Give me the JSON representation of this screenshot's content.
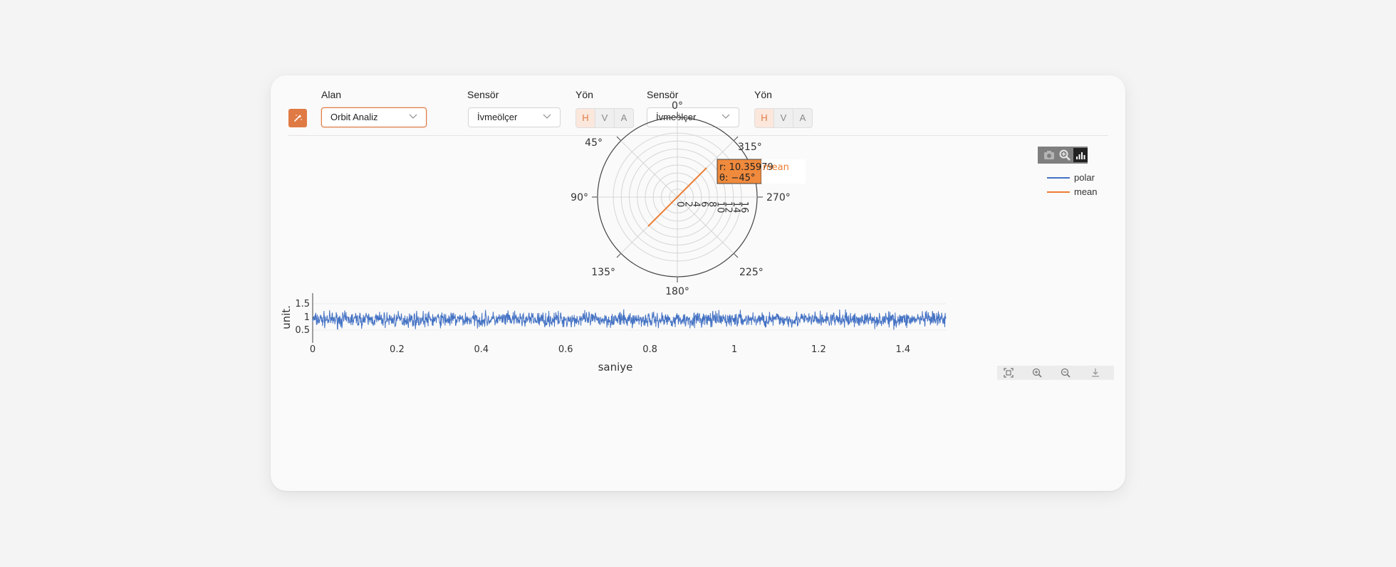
{
  "toolbar": {
    "field1_label": "Alan",
    "field1_value": "Orbit Analiz",
    "sensor1_label": "Sensör",
    "sensor1_value": "İvmeölçer",
    "dir1_label": "Yön",
    "sensor2_label": "Sensör",
    "sensor2_value": "İvmeölçer",
    "dir2_label": "Yön",
    "dir_options": [
      "H",
      "V",
      "A"
    ],
    "dir1_selected": "H",
    "dir2_selected": "H"
  },
  "polar": {
    "angle_labels": [
      "0°",
      "45°",
      "90°",
      "135°",
      "180°",
      "225°",
      "270°",
      "315°"
    ],
    "radial_ticks": [
      "0",
      "2",
      "4",
      "6",
      "8",
      "10",
      "12",
      "14",
      "16"
    ],
    "legend": [
      {
        "name": "polar",
        "color": "#4472c4"
      },
      {
        "name": "mean",
        "color": "#ed7d31"
      }
    ],
    "tooltip": {
      "r": "r: 10.35979",
      "theta": "θ: −45°",
      "name": "mean"
    }
  },
  "timeseries": {
    "ylabel": "unit.",
    "xlabel": "saniye",
    "yticks": [
      "1.5",
      "1",
      "0.5"
    ],
    "xticks": [
      "0",
      "0.2",
      "0.4",
      "0.6",
      "0.8",
      "1",
      "1.2",
      "1.4"
    ]
  },
  "chart_data": [
    {
      "type": "line",
      "subtype": "polar",
      "series": [
        {
          "name": "polar",
          "r": [],
          "theta": []
        },
        {
          "name": "mean",
          "r": [
            0,
            10.35979
          ],
          "theta": [
            135,
            -45
          ]
        }
      ],
      "radial_range": [
        0,
        16
      ],
      "angular_direction": "clockwise",
      "rotation": 90
    },
    {
      "type": "line",
      "xlabel": "saniye",
      "ylabel": "unit.",
      "xlim": [
        0,
        1.5
      ],
      "ylim": [
        0.25,
        1.85
      ],
      "series": [
        {
          "name": "",
          "mean": 1.0,
          "amplitude_approx": 0.3
        }
      ]
    }
  ],
  "colors": {
    "accent": "#e07a44",
    "polar_line": "#4472c4",
    "mean_line": "#ed7d31",
    "tooltip_bg": "#f08a3c"
  }
}
